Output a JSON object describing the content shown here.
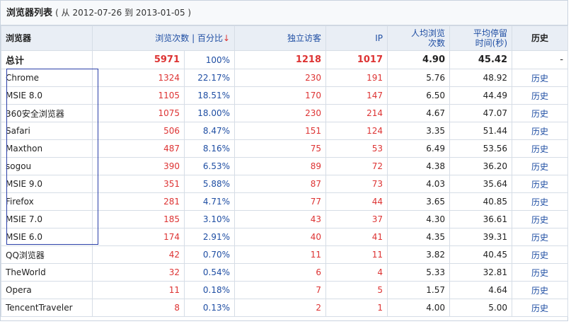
{
  "header": {
    "title": "浏览器列表",
    "range": "( 从 2012-07-26 到 2013-01-05 )"
  },
  "columns": {
    "browser": "浏览器",
    "visits": "浏览次数",
    "sep": "|",
    "pct": "百分比",
    "sort_arrow": "↓",
    "uv": "独立访客",
    "ip": "IP",
    "avg_views_1": "人均浏览",
    "avg_views_2": "次数",
    "avg_time_1": "平均停留",
    "avg_time_2": "时间(秒)",
    "history": "历史"
  },
  "total": {
    "name": "总计",
    "visits": "5971",
    "pct": "100%",
    "uv": "1218",
    "ip": "1017",
    "avg_views": "4.90",
    "avg_time": "45.42",
    "history": "-"
  },
  "rows": [
    {
      "name": "Chrome",
      "visits": "1324",
      "pct": "22.17%",
      "uv": "230",
      "ip": "191",
      "avg_views": "5.76",
      "avg_time": "48.92",
      "history": "历史"
    },
    {
      "name": "MSIE 8.0",
      "visits": "1105",
      "pct": "18.51%",
      "uv": "170",
      "ip": "147",
      "avg_views": "6.50",
      "avg_time": "44.49",
      "history": "历史"
    },
    {
      "name": "360安全浏览器",
      "visits": "1075",
      "pct": "18.00%",
      "uv": "230",
      "ip": "214",
      "avg_views": "4.67",
      "avg_time": "47.07",
      "history": "历史"
    },
    {
      "name": "Safari",
      "visits": "506",
      "pct": "8.47%",
      "uv": "151",
      "ip": "124",
      "avg_views": "3.35",
      "avg_time": "51.44",
      "history": "历史"
    },
    {
      "name": "Maxthon",
      "visits": "487",
      "pct": "8.16%",
      "uv": "75",
      "ip": "53",
      "avg_views": "6.49",
      "avg_time": "53.56",
      "history": "历史"
    },
    {
      "name": "sogou",
      "visits": "390",
      "pct": "6.53%",
      "uv": "89",
      "ip": "72",
      "avg_views": "4.38",
      "avg_time": "36.20",
      "history": "历史"
    },
    {
      "name": "MSIE 9.0",
      "visits": "351",
      "pct": "5.88%",
      "uv": "87",
      "ip": "73",
      "avg_views": "4.03",
      "avg_time": "35.64",
      "history": "历史"
    },
    {
      "name": "Firefox",
      "visits": "281",
      "pct": "4.71%",
      "uv": "77",
      "ip": "44",
      "avg_views": "3.65",
      "avg_time": "40.85",
      "history": "历史"
    },
    {
      "name": "MSIE 7.0",
      "visits": "185",
      "pct": "3.10%",
      "uv": "43",
      "ip": "37",
      "avg_views": "4.30",
      "avg_time": "36.61",
      "history": "历史"
    },
    {
      "name": "MSIE 6.0",
      "visits": "174",
      "pct": "2.91%",
      "uv": "40",
      "ip": "41",
      "avg_views": "4.35",
      "avg_time": "39.31",
      "history": "历史"
    },
    {
      "name": "QQ浏览器",
      "visits": "42",
      "pct": "0.70%",
      "uv": "11",
      "ip": "11",
      "avg_views": "3.82",
      "avg_time": "40.45",
      "history": "历史"
    },
    {
      "name": "TheWorld",
      "visits": "32",
      "pct": "0.54%",
      "uv": "6",
      "ip": "4",
      "avg_views": "5.33",
      "avg_time": "32.81",
      "history": "历史"
    },
    {
      "name": "Opera",
      "visits": "11",
      "pct": "0.18%",
      "uv": "7",
      "ip": "5",
      "avg_views": "1.57",
      "avg_time": "4.64",
      "history": "历史"
    },
    {
      "name": "TencentTraveler",
      "visits": "8",
      "pct": "0.13%",
      "uv": "2",
      "ip": "1",
      "avg_views": "4.00",
      "avg_time": "5.00",
      "history": "历史"
    }
  ],
  "colors": {
    "accent_red": "#d33333",
    "link_blue": "#1f4ea3",
    "header_bg": "#e9eef5",
    "outline": "#2a3fa8"
  }
}
